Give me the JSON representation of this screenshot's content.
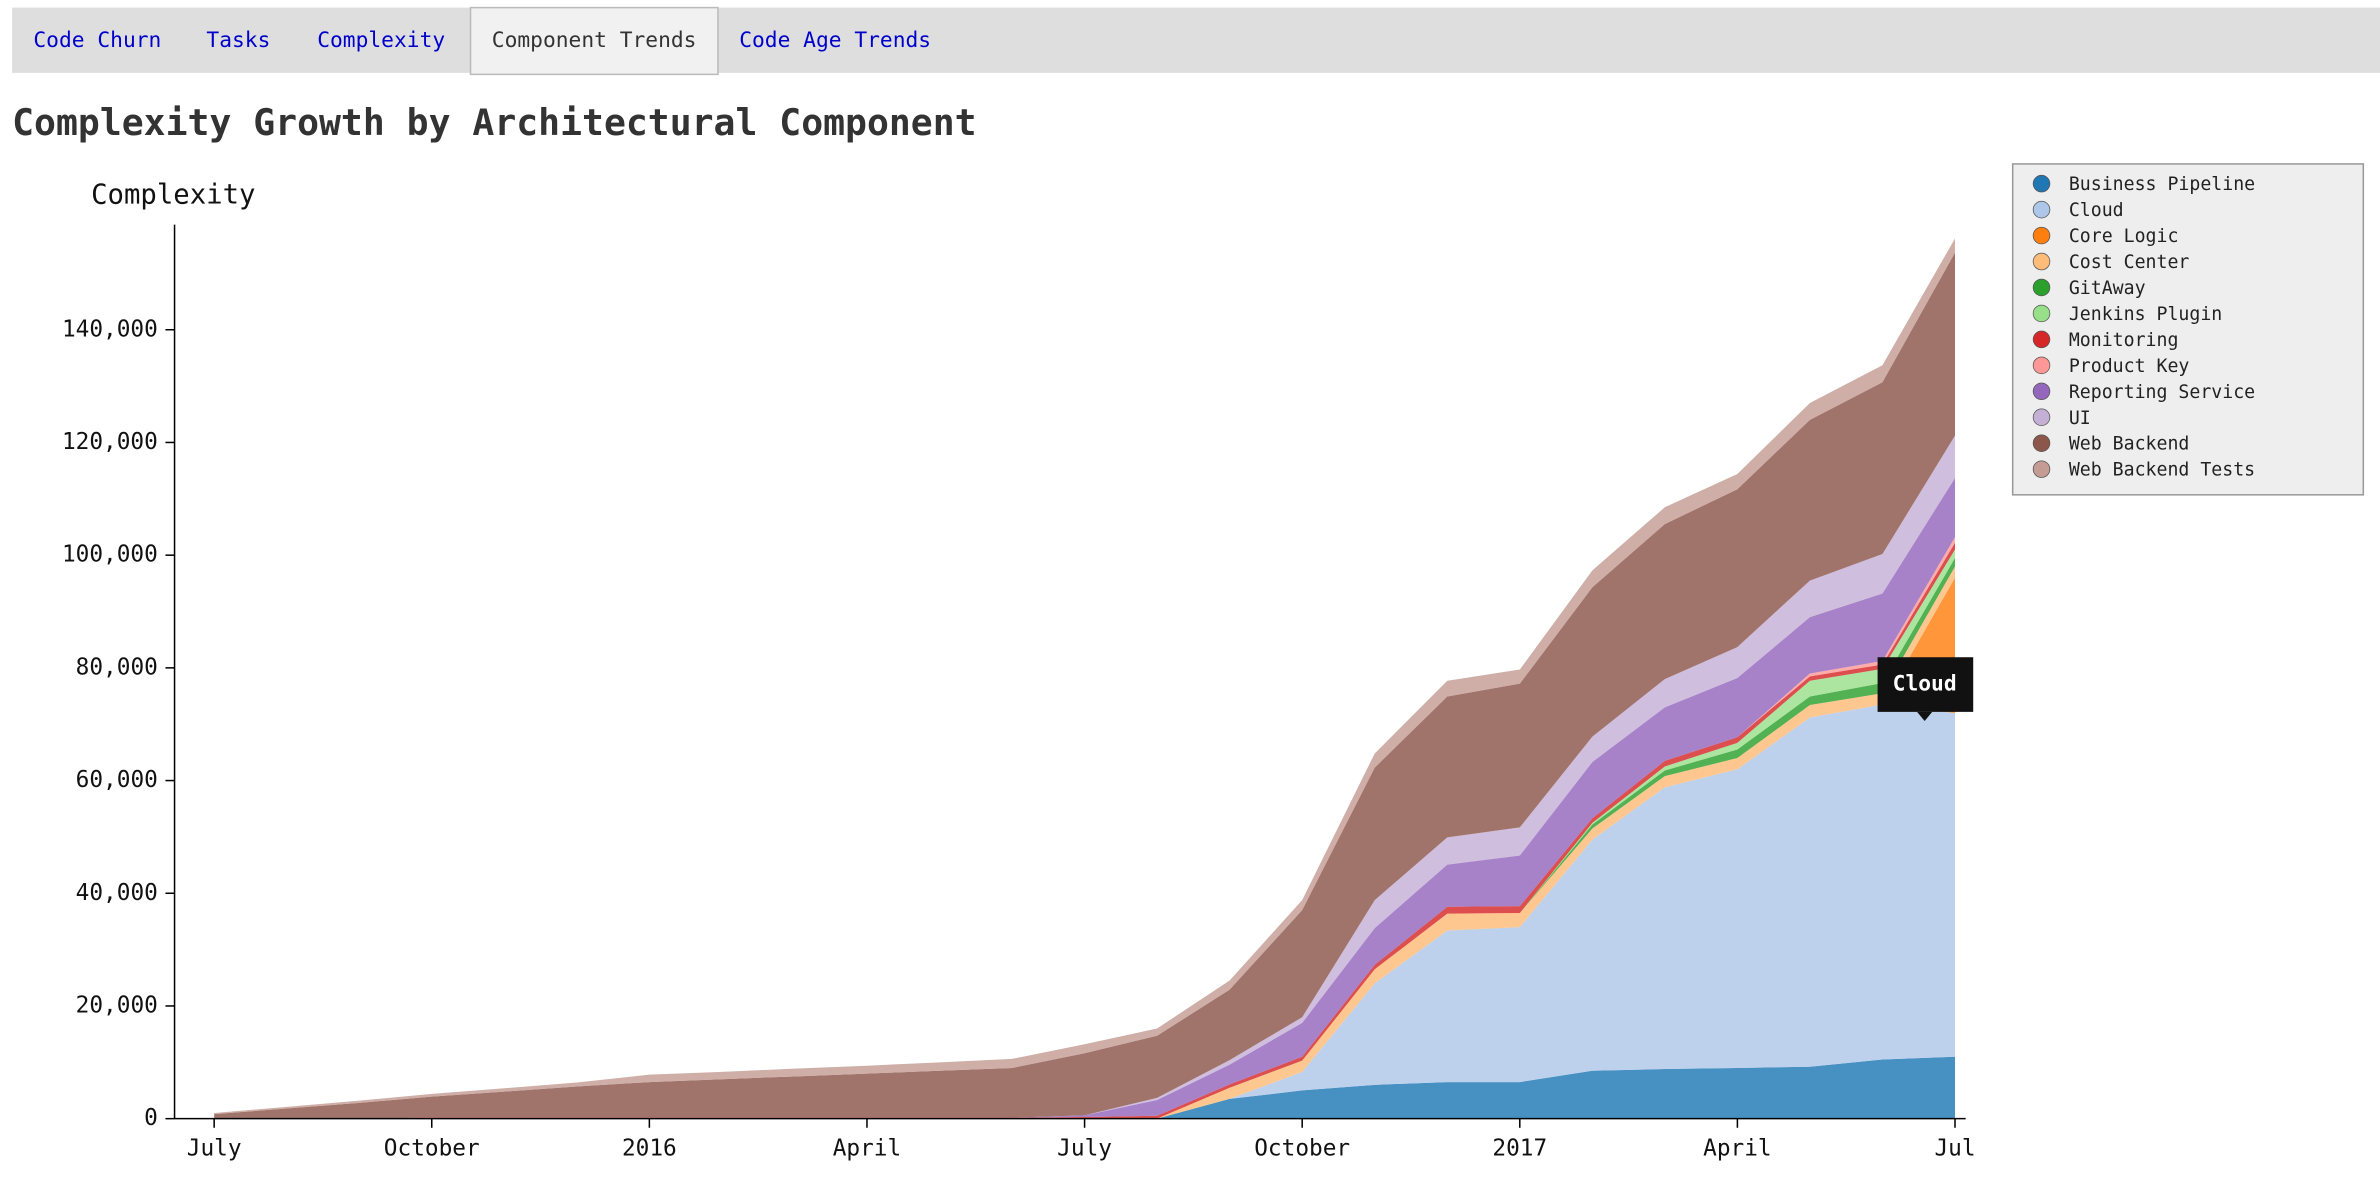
{
  "tabs": {
    "items": [
      "Code Churn",
      "Tasks",
      "Complexity",
      "Component Trends",
      "Code Age Trends"
    ],
    "active": 3
  },
  "chart_data": {
    "type": "stacked-area",
    "title": "Complexity Growth by Architectural Component",
    "y_label": "Complexity",
    "x": [
      "2015-07",
      "2015-08",
      "2015-09",
      "2015-10",
      "2015-11",
      "2015-12",
      "2016-01",
      "2016-02",
      "2016-03",
      "2016-04",
      "2016-05",
      "2016-06",
      "2016-07",
      "2016-08",
      "2016-09",
      "2016-10",
      "2016-11",
      "2016-12",
      "2017-01",
      "2017-02",
      "2017-03",
      "2017-04",
      "2017-05",
      "2017-06",
      "2017-07"
    ],
    "xlim": [
      "2015-06",
      "2017-07"
    ],
    "xticks": [
      {
        "value": "2015-07",
        "label": "July"
      },
      {
        "value": "2015-10",
        "label": "October"
      },
      {
        "value": "2016-01",
        "label": "2016"
      },
      {
        "value": "2016-04",
        "label": "April"
      },
      {
        "value": "2016-07",
        "label": "July"
      },
      {
        "value": "2016-10",
        "label": "October"
      },
      {
        "value": "2017-01",
        "label": "2017"
      },
      {
        "value": "2017-04",
        "label": "April"
      },
      {
        "value": "2017-07",
        "label": "Jul"
      }
    ],
    "ylim": [
      0,
      160000
    ],
    "yticks": [
      0,
      {
        "value": 20000,
        "label": "20,000"
      },
      {
        "value": 40000,
        "label": "40,000"
      },
      {
        "value": 60000,
        "label": "60,000"
      },
      {
        "value": 80000,
        "label": "80,000"
      },
      {
        "value": 100000,
        "label": "100,000"
      },
      {
        "value": 120000,
        "label": "120,000"
      },
      {
        "value": 140000,
        "label": "140,000"
      }
    ],
    "legend": "top-right",
    "tooltip_series": 1,
    "series": [
      {
        "name": "Business Pipeline",
        "color": "#1f77b4",
        "values": [
          0,
          0,
          0,
          0,
          0,
          0,
          0,
          0,
          0,
          0,
          0,
          0,
          0,
          0,
          3500,
          5000,
          6000,
          6500,
          6500,
          8500,
          8800,
          9000,
          9200,
          10500,
          11000
        ]
      },
      {
        "name": "Cloud",
        "color": "#aec7e8",
        "values": [
          0,
          0,
          0,
          0,
          0,
          0,
          0,
          0,
          0,
          0,
          0,
          0,
          0,
          0,
          0,
          3300,
          18000,
          26900,
          27500,
          41000,
          50000,
          53000,
          62000,
          63000,
          61000
        ]
      },
      {
        "name": "Core Logic",
        "color": "#ff7f0e",
        "values": [
          0,
          0,
          0,
          0,
          0,
          0,
          0,
          0,
          0,
          0,
          0,
          0,
          0,
          0,
          0,
          0,
          0,
          0,
          0,
          0,
          0,
          0,
          0,
          0,
          24000
        ]
      },
      {
        "name": "Cost Center",
        "color": "#ffbb78",
        "values": [
          0,
          0,
          0,
          0,
          0,
          0,
          0,
          0,
          0,
          0,
          0,
          0,
          0,
          0,
          2000,
          2000,
          2500,
          3000,
          2500,
          2000,
          2000,
          2000,
          2200,
          2000,
          2000
        ]
      },
      {
        "name": "GitAway",
        "color": "#2ca02c",
        "values": [
          0,
          0,
          0,
          0,
          0,
          0,
          0,
          0,
          0,
          0,
          0,
          0,
          0,
          0,
          0,
          0,
          0,
          0,
          0,
          700,
          1000,
          1500,
          1500,
          1800,
          1500
        ]
      },
      {
        "name": "Jenkins Plugin",
        "color": "#98df8a",
        "values": [
          0,
          0,
          0,
          0,
          0,
          0,
          0,
          0,
          0,
          0,
          0,
          0,
          0,
          0,
          0,
          0,
          0,
          0,
          0,
          300,
          700,
          1200,
          2800,
          2500,
          1500
        ]
      },
      {
        "name": "Monitoring",
        "color": "#d62728",
        "values": [
          0,
          0,
          0,
          200,
          200,
          200,
          200,
          200,
          200,
          200,
          200,
          200,
          300,
          500,
          600,
          700,
          800,
          1200,
          1200,
          800,
          1000,
          1000,
          800,
          800,
          1200
        ]
      },
      {
        "name": "Product Key",
        "color": "#ff9896",
        "values": [
          0,
          0,
          0,
          0,
          0,
          0,
          0,
          0,
          0,
          0,
          0,
          0,
          0,
          0,
          0,
          0,
          0,
          0,
          0,
          0,
          0,
          0,
          500,
          600,
          1000
        ]
      },
      {
        "name": "Reporting Service",
        "color": "#9467bd",
        "values": [
          0,
          0,
          0,
          0,
          0,
          0,
          0,
          0,
          0,
          0,
          0,
          0,
          300,
          2800,
          3500,
          6000,
          6500,
          7500,
          9000,
          10000,
          9500,
          10500,
          10000,
          12000,
          10500
        ]
      },
      {
        "name": "UI",
        "color": "#c5b0d5",
        "values": [
          0,
          0,
          0,
          0,
          0,
          0,
          0,
          0,
          0,
          0,
          0,
          0,
          0,
          400,
          800,
          1000,
          5000,
          4800,
          5000,
          4500,
          5000,
          5500,
          6500,
          7000,
          7500
        ]
      },
      {
        "name": "Web Backend",
        "color": "#8c564b",
        "values": [
          800,
          1800,
          2800,
          3700,
          4600,
          5500,
          6300,
          6800,
          7300,
          7800,
          8300,
          8800,
          11000,
          11000,
          12500,
          19000,
          23500,
          25000,
          25500,
          26500,
          27500,
          28000,
          28500,
          30500,
          32500
        ]
      },
      {
        "name": "Web Backend Tests",
        "color": "#c49c94",
        "values": [
          200,
          300,
          400,
          500,
          600,
          700,
          1300,
          1300,
          1400,
          1400,
          1500,
          1600,
          1600,
          1300,
          1600,
          1800,
          2500,
          2800,
          2500,
          3000,
          3000,
          2700,
          3000,
          3000,
          2500
        ]
      }
    ]
  }
}
